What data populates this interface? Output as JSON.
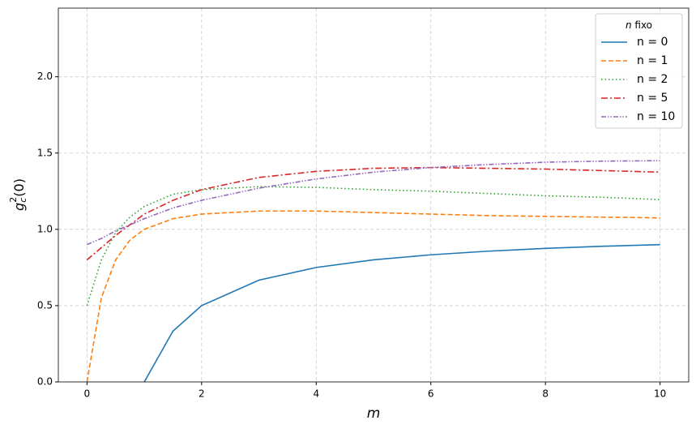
{
  "chart_data": {
    "type": "line",
    "x_label": "m",
    "y_label": {
      "base": "g",
      "sub": "c",
      "sup": "2",
      "rest": "(0)"
    },
    "legend_title": {
      "var": "n",
      "text": "fixo"
    },
    "x": [
      0,
      0.25,
      0.5,
      0.75,
      1,
      1.5,
      2,
      3,
      4,
      5,
      6,
      7,
      8,
      9,
      10
    ],
    "series": [
      {
        "name": "n = 0",
        "color": "#1f77b4",
        "dash": "none",
        "values": [
          null,
          null,
          null,
          null,
          0,
          0.333,
          0.5,
          0.667,
          0.75,
          0.8,
          0.833,
          0.857,
          0.875,
          0.889,
          0.9
        ]
      },
      {
        "name": "n = 1",
        "color": "#ff7f0e",
        "dash": "6 3",
        "values": [
          0,
          0.55,
          0.8,
          0.93,
          1.0,
          1.07,
          1.1,
          1.12,
          1.12,
          1.11,
          1.1,
          1.09,
          1.085,
          1.08,
          1.075
        ]
      },
      {
        "name": "n = 2",
        "color": "#2ca02c",
        "dash": "1.5 3",
        "values": [
          0.5,
          0.8,
          0.98,
          1.08,
          1.15,
          1.23,
          1.26,
          1.28,
          1.275,
          1.26,
          1.25,
          1.235,
          1.22,
          1.21,
          1.195
        ]
      },
      {
        "name": "n = 5",
        "color": "#d62728",
        "dash": "8 3 2 3",
        "values": [
          0.8,
          0.88,
          0.96,
          1.03,
          1.1,
          1.19,
          1.26,
          1.34,
          1.38,
          1.4,
          1.405,
          1.4,
          1.395,
          1.385,
          1.375
        ]
      },
      {
        "name": "n = 10",
        "color": "#9467bd",
        "dash": "6 2 1.5 2 1.5 2",
        "values": [
          0.9,
          0.94,
          0.99,
          1.03,
          1.07,
          1.14,
          1.19,
          1.27,
          1.33,
          1.375,
          1.405,
          1.425,
          1.44,
          1.447,
          1.45
        ]
      }
    ],
    "xlim": [
      -0.5,
      10.5
    ],
    "xticks": [
      0,
      2,
      4,
      6,
      8,
      10
    ],
    "ylim": [
      0,
      2.45
    ],
    "yticks": [
      {
        "value": 0,
        "label": "0.0"
      },
      0.5,
      {
        "value": 1,
        "label": "1.0"
      },
      1.5,
      {
        "value": 2,
        "label": "2.0"
      }
    ],
    "grid": true,
    "legend": "upper right"
  }
}
